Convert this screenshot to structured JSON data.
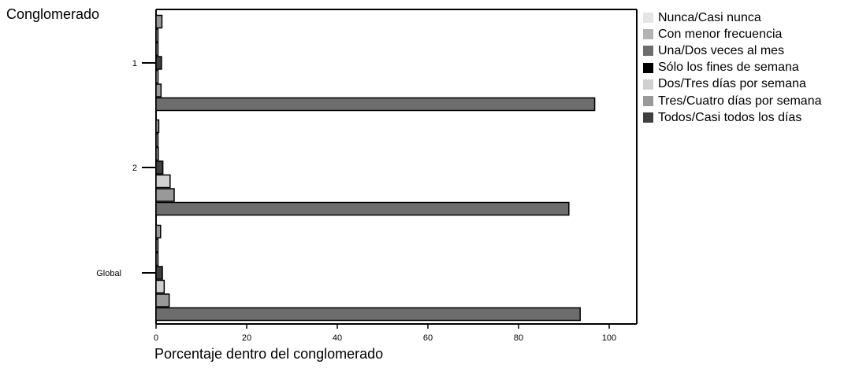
{
  "chart_data": {
    "type": "bar",
    "orientation": "horizontal",
    "ylabel": "Conglomerado",
    "xlabel": "Porcentaje dentro del conglomerado",
    "categories": [
      "1",
      "2",
      "Global"
    ],
    "x_ticks": [
      "0",
      "20",
      "40",
      "60",
      "80",
      "100"
    ],
    "xlim": [
      0,
      105
    ],
    "legend_position": "right",
    "series": [
      {
        "name": "Nunca/Casi nunca",
        "color": "#e5e5e5",
        "values": [
          0.0,
          0.0,
          0.0
        ]
      },
      {
        "name": "Con menor frecuencia",
        "color": "#b3b3b3",
        "values": [
          1.3,
          0.6,
          1.0
        ]
      },
      {
        "name": "Una/Dos veces al mes",
        "color": "#6d6d6d",
        "values": [
          0.0,
          0.4,
          0.3
        ]
      },
      {
        "name": "Sólo los fines de semana",
        "color": "#000000",
        "values": [
          0.0,
          0.5,
          0.3
        ]
      },
      {
        "name": "Dos/Tres días por semana",
        "color": "#d0d0d0",
        "values": [
          0.0,
          0.0,
          0.0
        ]
      },
      {
        "name": "Tres/Cuatro días por semana",
        "color": "#999999",
        "values": [
          1.1,
          1.5,
          1.3
        ]
      },
      {
        "name": "Todos/Casi todos los días",
        "color": "#3f3f3f",
        "values": [
          0.0,
          0.0,
          0.0
        ]
      }
    ],
    "bars_drawn_order": [
      {
        "category": "1",
        "values": [
          1.3,
          0.0,
          0.0,
          1.2,
          0.0,
          1.1,
          96.8
        ],
        "colors": [
          "#999999",
          "#999999",
          "#999999",
          "#3f3f3f",
          "#d0d0d0",
          "#999999",
          "#6d6d6d"
        ]
      },
      {
        "category": "2",
        "values": [
          0.6,
          0.4,
          0.5,
          1.5,
          3.1,
          4.0,
          91.1
        ],
        "colors": [
          "#999999",
          "#999999",
          "#999999",
          "#3f3f3f",
          "#d0d0d0",
          "#999999",
          "#6d6d6d"
        ]
      },
      {
        "category": "Global",
        "values": [
          1.0,
          0.3,
          0.3,
          1.4,
          1.8,
          2.9,
          93.6
        ],
        "colors": [
          "#999999",
          "#999999",
          "#999999",
          "#3f3f3f",
          "#d0d0d0",
          "#999999",
          "#6d6d6d"
        ]
      }
    ]
  }
}
